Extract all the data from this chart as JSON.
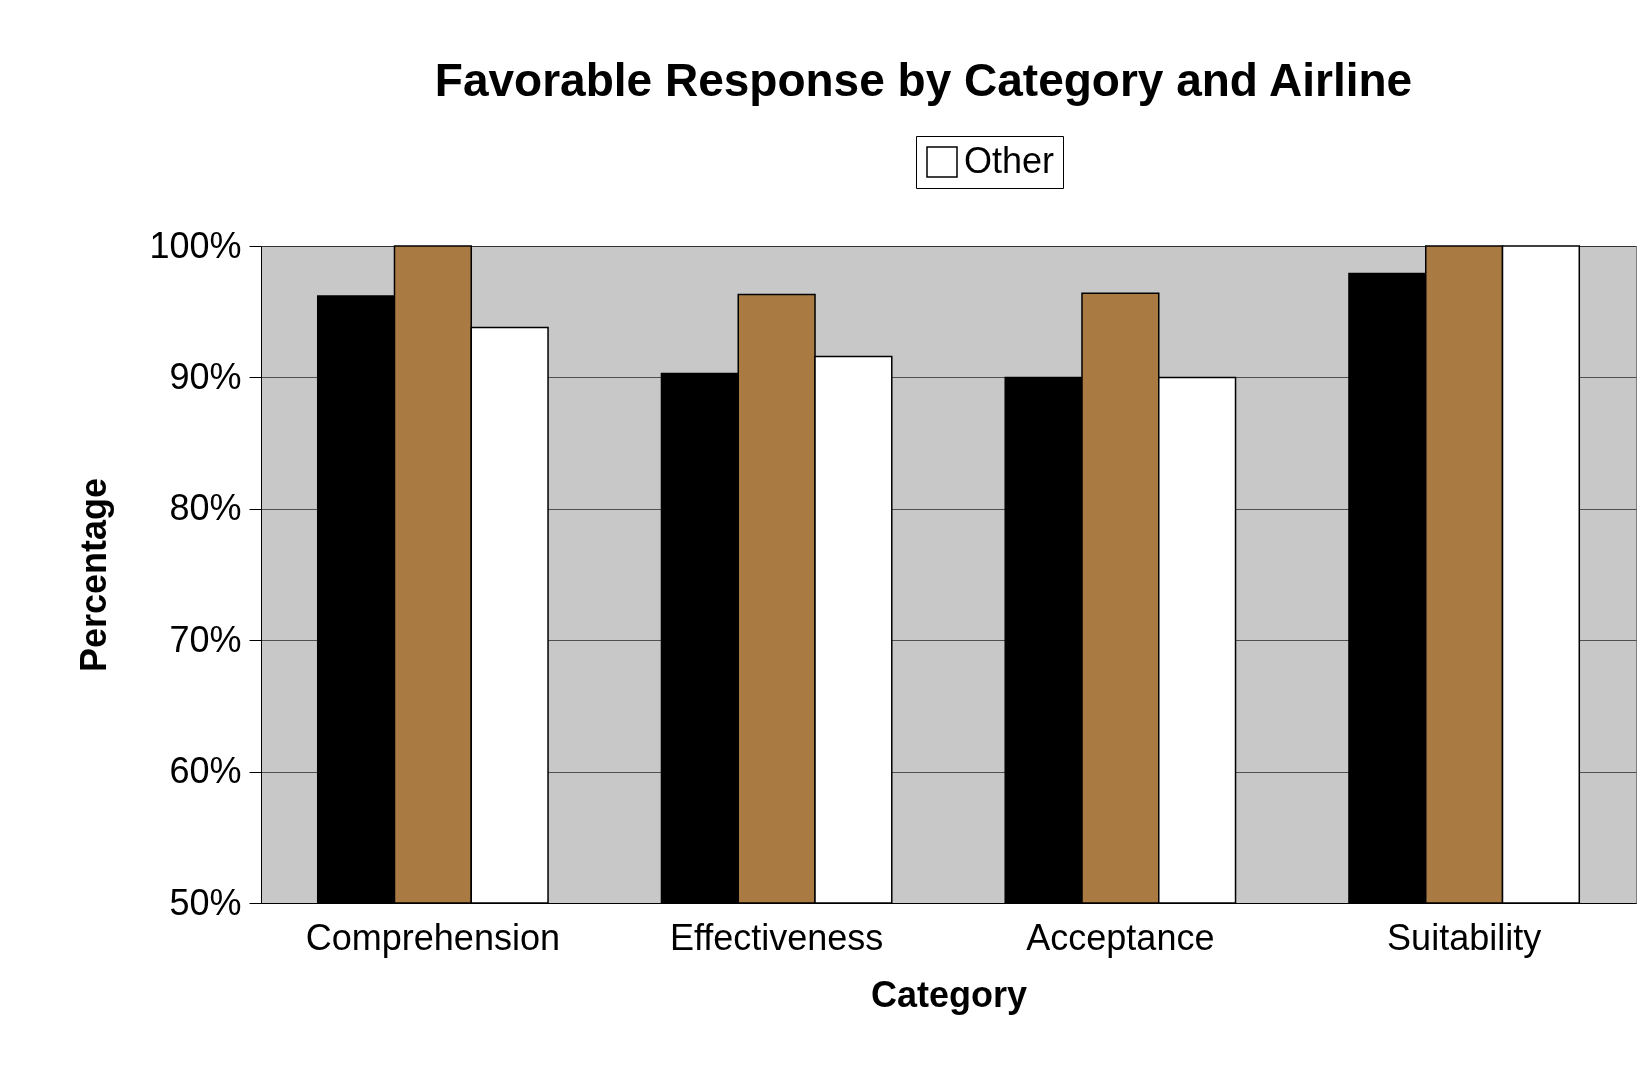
{
  "chart_data": {
    "type": "bar",
    "title": "Favorable Response by Category and Airline",
    "xlabel": "Category",
    "ylabel": "Percentage",
    "categories": [
      "Comprehension",
      "Effectiveness",
      "Acceptance",
      "Suitability"
    ],
    "series": [
      {
        "color": "#000000",
        "values": [
          96.2,
          90.3,
          90.0,
          97.9
        ]
      },
      {
        "color": "#a97a42",
        "values": [
          100,
          96.3,
          96.4,
          100
        ]
      },
      {
        "name": "Other",
        "color": "#ffffff",
        "values": [
          93.8,
          91.6,
          90.0,
          100
        ]
      }
    ],
    "ylim": [
      50,
      100
    ],
    "yticks": [
      {
        "value": 50,
        "label": "50%"
      },
      {
        "value": 60,
        "label": "60%"
      },
      {
        "value": 70,
        "label": "70%"
      },
      {
        "value": 80,
        "label": "80%"
      },
      {
        "value": 90,
        "label": "90%"
      },
      {
        "value": 100,
        "label": "100%"
      }
    ],
    "grid": "y",
    "legend": "top"
  }
}
